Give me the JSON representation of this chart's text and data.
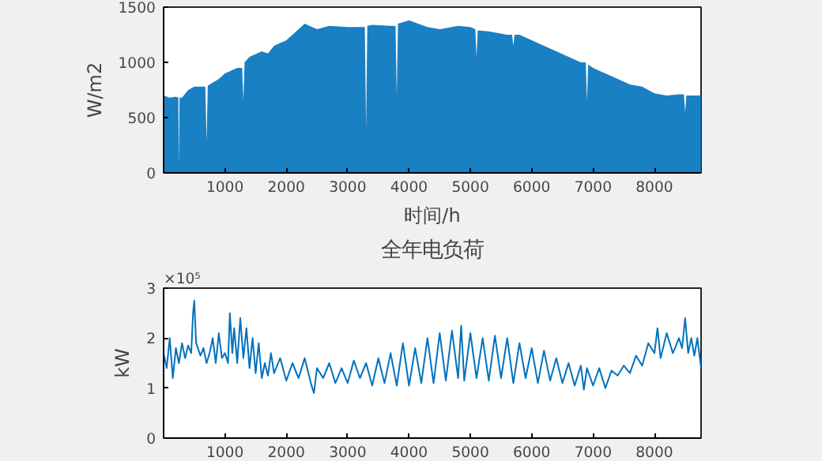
{
  "chart_data": [
    {
      "type": "area",
      "xlabel": "时间/h",
      "ylabel": "W/m2",
      "color": "#0072bd",
      "grid": false,
      "xlim": [
        0,
        8760
      ],
      "ylim": [
        0,
        1500
      ],
      "xticks": [
        1000,
        2000,
        3000,
        4000,
        5000,
        6000,
        7000,
        8000
      ],
      "yticks": [
        0,
        500,
        1000,
        1500
      ],
      "x": [
        0,
        100,
        200,
        240,
        250,
        260,
        300,
        400,
        500,
        600,
        680,
        700,
        720,
        750,
        900,
        1000,
        1200,
        1280,
        1300,
        1320,
        1400,
        1600,
        1700,
        1800,
        2000,
        2200,
        2300,
        2500,
        2700,
        3000,
        3280,
        3300,
        3320,
        3400,
        3700,
        3780,
        3800,
        3820,
        4000,
        4300,
        4500,
        4800,
        5000,
        5080,
        5100,
        5120,
        5300,
        5600,
        5680,
        5700,
        5720,
        5800,
        6000,
        6200,
        6400,
        6600,
        6800,
        6880,
        6900,
        6920,
        7000,
        7200,
        7400,
        7600,
        7800,
        8000,
        8200,
        8400,
        8480,
        8500,
        8520,
        8600,
        8760
      ],
      "values": [
        700,
        680,
        690,
        680,
        80,
        680,
        680,
        750,
        780,
        780,
        780,
        280,
        790,
        800,
        850,
        900,
        950,
        950,
        650,
        1000,
        1050,
        1100,
        1080,
        1150,
        1200,
        1300,
        1350,
        1300,
        1330,
        1320,
        1320,
        400,
        1330,
        1340,
        1330,
        1330,
        700,
        1350,
        1380,
        1320,
        1300,
        1330,
        1320,
        1300,
        1050,
        1290,
        1280,
        1250,
        1250,
        1150,
        1250,
        1250,
        1200,
        1150,
        1100,
        1050,
        1000,
        1000,
        650,
        980,
        950,
        900,
        850,
        800,
        780,
        720,
        700,
        710,
        710,
        550,
        700,
        700,
        700
      ]
    },
    {
      "type": "line",
      "title": "全年电负荷",
      "ylabel": "kW",
      "color": "#0072bd",
      "grid": false,
      "annotations": [
        "×10⁵"
      ],
      "xlim": [
        0,
        8760
      ],
      "ylim": [
        0,
        3
      ],
      "xticks": [
        1000,
        2000,
        3000,
        4000,
        5000,
        6000,
        7000,
        8000
      ],
      "yticks": [
        0,
        1,
        2,
        3
      ],
      "x": [
        0,
        50,
        100,
        150,
        200,
        250,
        300,
        350,
        400,
        450,
        480,
        500,
        530,
        600,
        650,
        700,
        750,
        800,
        850,
        900,
        950,
        1000,
        1050,
        1080,
        1120,
        1150,
        1200,
        1250,
        1300,
        1350,
        1400,
        1450,
        1500,
        1550,
        1600,
        1650,
        1700,
        1750,
        1800,
        1900,
        2000,
        2100,
        2200,
        2300,
        2400,
        2450,
        2500,
        2600,
        2700,
        2800,
        2900,
        3000,
        3100,
        3200,
        3300,
        3400,
        3500,
        3600,
        3700,
        3800,
        3900,
        4000,
        4100,
        4200,
        4300,
        4400,
        4500,
        4600,
        4700,
        4800,
        4850,
        4900,
        5000,
        5100,
        5200,
        5300,
        5400,
        5500,
        5600,
        5700,
        5800,
        5900,
        6000,
        6100,
        6200,
        6300,
        6400,
        6500,
        6600,
        6700,
        6800,
        6850,
        6900,
        7000,
        7100,
        7200,
        7300,
        7400,
        7500,
        7600,
        7700,
        7800,
        7900,
        8000,
        8050,
        8100,
        8200,
        8300,
        8400,
        8450,
        8500,
        8550,
        8600,
        8650,
        8700,
        8760
      ],
      "values": [
        1.7,
        1.4,
        2.0,
        1.2,
        1.8,
        1.5,
        1.9,
        1.6,
        1.85,
        1.7,
        2.5,
        2.75,
        1.9,
        1.65,
        1.8,
        1.5,
        1.7,
        2.0,
        1.5,
        2.1,
        1.6,
        1.7,
        1.5,
        2.5,
        1.7,
        2.2,
        1.5,
        2.4,
        1.6,
        2.2,
        1.4,
        2.0,
        1.3,
        1.9,
        1.2,
        1.5,
        1.25,
        1.7,
        1.3,
        1.6,
        1.15,
        1.5,
        1.2,
        1.6,
        1.1,
        0.9,
        1.4,
        1.2,
        1.5,
        1.1,
        1.4,
        1.1,
        1.55,
        1.2,
        1.5,
        1.05,
        1.6,
        1.1,
        1.7,
        1.05,
        1.9,
        1.05,
        1.8,
        1.1,
        2.0,
        1.1,
        2.1,
        1.15,
        2.15,
        1.2,
        2.25,
        1.15,
        2.1,
        1.2,
        2.0,
        1.15,
        2.05,
        1.2,
        2.0,
        1.1,
        1.9,
        1.2,
        1.8,
        1.1,
        1.75,
        1.15,
        1.6,
        1.1,
        1.5,
        1.05,
        1.45,
        0.97,
        1.4,
        1.05,
        1.4,
        1.0,
        1.35,
        1.25,
        1.45,
        1.3,
        1.65,
        1.45,
        1.9,
        1.7,
        2.2,
        1.6,
        2.1,
        1.7,
        2.0,
        1.8,
        2.4,
        1.7,
        2.0,
        1.65,
        2.0,
        1.4
      ]
    }
  ]
}
